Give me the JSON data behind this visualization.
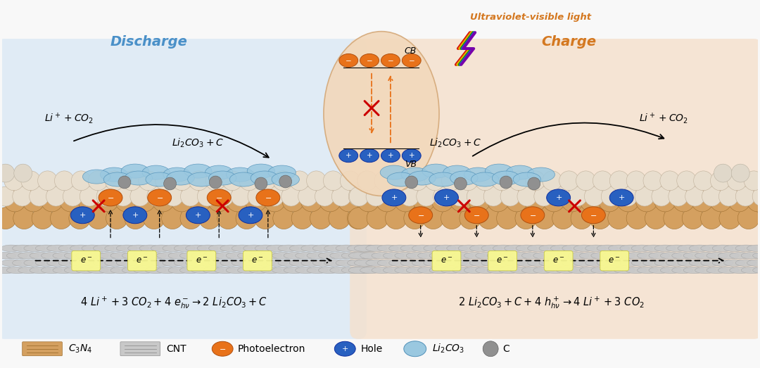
{
  "bg_color": "#f8f8f8",
  "left_bg": "#dae8f5",
  "right_bg": "#f5e0cc",
  "center_ellipse_color": "#f2d8bb",
  "discharge_label": "Discharge",
  "charge_label": "Charge",
  "discharge_color": "#4a90c8",
  "charge_color": "#d47820",
  "uv_label": "Ultraviolet-visible light",
  "uv_color": "#d47820",
  "orange_color": "#e8721a",
  "blue_color": "#2860c0",
  "light_blue_color": "#9ac8e0",
  "gray_particle_color": "#909090",
  "tan_color": "#d4a060",
  "cnt_color": "#c8c8c8",
  "white_sphere": "#e8e4de",
  "yellow_bg": "#f0f080",
  "eq_left": "4 Li$^+$ + 3 CO$_2$ + 4 e$^-_{h\\nu}$ → 2 Li$_2$CO$_3$ + C",
  "eq_right": "2 Li$_2$CO$_3$ + C + 4 h$^+_{h\\nu}$ → 4 Li$^+$ + 3 CO$_2$"
}
